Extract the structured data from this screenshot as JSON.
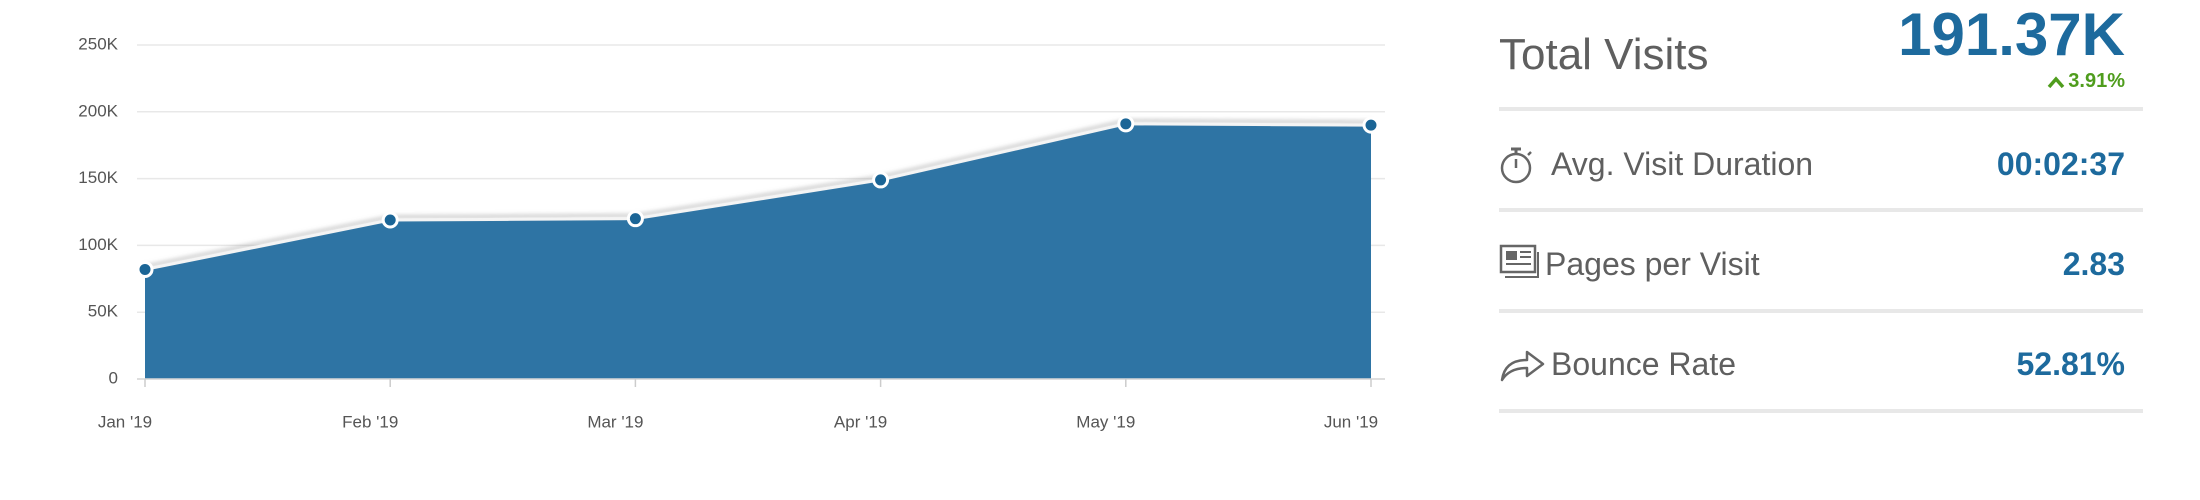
{
  "chart_data": {
    "type": "area",
    "categories": [
      "Jan '19",
      "Feb '19",
      "Mar '19",
      "Apr '19",
      "May '19",
      "Jun '19"
    ],
    "values": [
      82000,
      119000,
      120000,
      149000,
      191000,
      190000
    ],
    "color": "#2e74a4",
    "ylim": [
      0,
      250000
    ],
    "yticks": [
      0,
      {
        "value": 50000,
        "label": "50K"
      },
      {
        "value": 100000,
        "label": "100K"
      },
      {
        "value": 150000,
        "label": "150K"
      },
      {
        "value": 200000,
        "label": "200K"
      },
      {
        "value": 250000,
        "label": "250K"
      }
    ],
    "grid": true
  },
  "summary": {
    "title": "Total Visits",
    "total": "191.37K",
    "change": "3.91%",
    "metrics": [
      {
        "label": "Avg. Visit Duration",
        "value": "00:02:37"
      },
      {
        "label": "Pages per Visit",
        "value": "2.83"
      },
      {
        "label": "Bounce Rate",
        "value": "52.81%"
      }
    ]
  }
}
